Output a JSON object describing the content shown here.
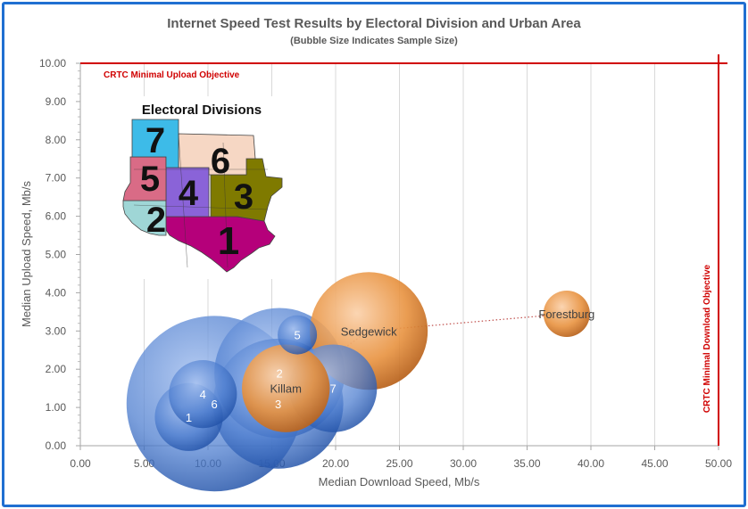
{
  "chart_data": {
    "type": "scatter",
    "title": "Internet Speed Test Results by  Electoral Division and Urban Area",
    "subtitle": "(Bubble Size Indicates Sample Size)",
    "xlabel": "Median Download Speed, Mb/s",
    "ylabel": "Median Upload Speed, Mb/s",
    "xlim": [
      0,
      50
    ],
    "ylim": [
      0,
      10
    ],
    "x_ticks": [
      "0.00",
      "5.00",
      "10.00",
      "15.00",
      "20.00",
      "25.00",
      "30.00",
      "35.00",
      "40.00",
      "45.00",
      "50.00"
    ],
    "y_ticks": [
      "0.00",
      "1.00",
      "2.00",
      "3.00",
      "4.00",
      "5.00",
      "6.00",
      "7.00",
      "8.00",
      "9.00",
      "10.00"
    ],
    "grid": "vertical",
    "series": [
      {
        "color": "#3f72c9",
        "points": [
          {
            "label": "1",
            "x": 8.5,
            "y": 0.75,
            "size": 3
          },
          {
            "label": "4",
            "x": 9.6,
            "y": 1.35,
            "size": 3
          },
          {
            "label": "6",
            "x": 10.5,
            "y": 1.1,
            "size": 20
          },
          {
            "label": "5",
            "x": 17.0,
            "y": 2.9,
            "size": 1
          },
          {
            "label": "2",
            "x": 15.6,
            "y": 1.9,
            "size": 11
          },
          {
            "label": "3",
            "x": 15.5,
            "y": 1.1,
            "size": 11
          },
          {
            "label": "7",
            "x": 19.8,
            "y": 1.5,
            "size": 5
          }
        ]
      },
      {
        "color": "#e58a3c",
        "points": [
          {
            "label": "Killam",
            "x": 16.1,
            "y": 1.5,
            "size": 5
          },
          {
            "label": "Sedgewick",
            "x": 22.6,
            "y": 3.0,
            "size": 9
          },
          {
            "label": "Forestburg",
            "x": 38.1,
            "y": 3.45,
            "size": 1.4
          }
        ]
      }
    ],
    "reference_lines": [
      {
        "label": "CRTC Minimal Upload Objective",
        "axis": "y",
        "value": 10
      },
      {
        "label": "CRTC Minimal Download Objective",
        "axis": "x",
        "value": 50
      }
    ],
    "trendline": {
      "series": 1,
      "style": "dotted",
      "color": "#c0504d"
    }
  },
  "inset_map": {
    "title": "Electoral Divisions",
    "divisions": [
      {
        "number": "1",
        "color": "#b5007a"
      },
      {
        "number": "2",
        "color": "#9fd6d6"
      },
      {
        "number": "3",
        "color": "#7f7a00"
      },
      {
        "number": "4",
        "color": "#8a63d8"
      },
      {
        "number": "5",
        "color": "#d96b86"
      },
      {
        "number": "6",
        "color": "#f6d7c4"
      },
      {
        "number": "7",
        "color": "#3dbbe8"
      }
    ]
  }
}
